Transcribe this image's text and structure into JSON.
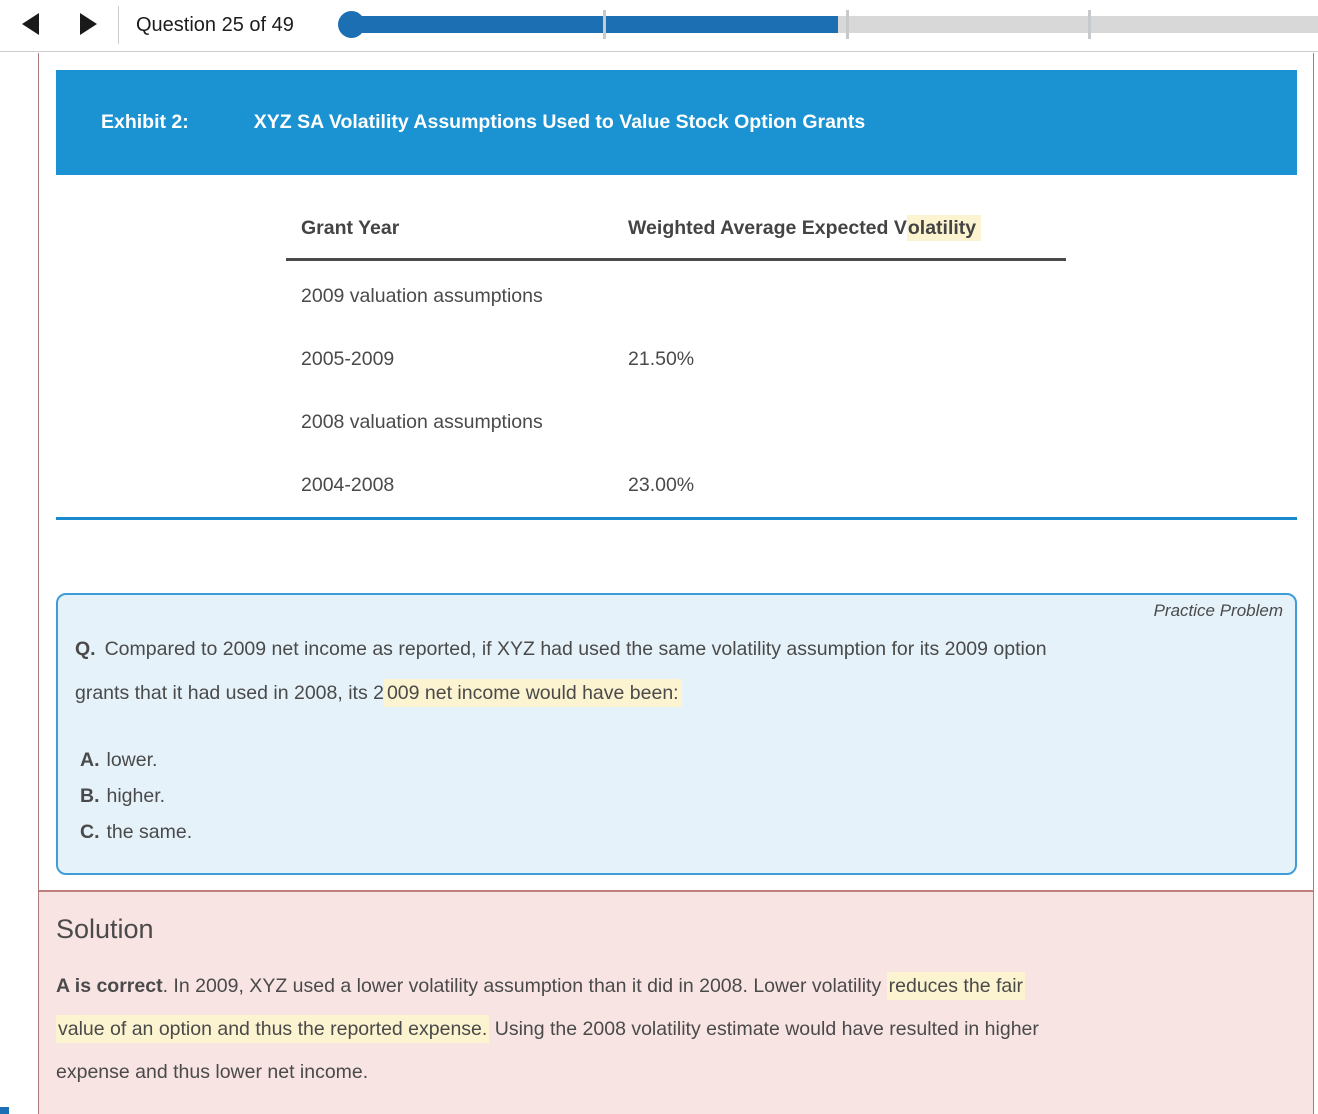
{
  "topbar": {
    "question_counter": "Question 25 of 49",
    "progress_percent": 50.7
  },
  "exhibit": {
    "label": "Exhibit 2:",
    "title": "XYZ SA Volatility Assumptions Used to Value Stock Option Grants"
  },
  "table": {
    "col1_label": "Grant Year",
    "col2_pre": "Weighted Average Expected V",
    "col2_mark": "olatility",
    "rows": [
      {
        "grant_year": "2009 valuation assumptions",
        "volatility": ""
      },
      {
        "grant_year": "2005-2009",
        "volatility": "21.50%"
      },
      {
        "grant_year": "2008 valuation assumptions",
        "volatility": ""
      },
      {
        "grant_year": "2004-2008",
        "volatility": "23.00%"
      }
    ]
  },
  "question": {
    "badge": "Practice Problem",
    "q_label": "Q.",
    "line1": "Compared to 2009 net income as reported, if XYZ had used the same volatility assumption for its 2009 option",
    "line2_pre": "grants that it had used in 2008, its 2",
    "line2_mark": "009 net income would have been:",
    "options": [
      {
        "letter": "A.",
        "text": "lower."
      },
      {
        "letter": "B.",
        "text": "higher."
      },
      {
        "letter": "C.",
        "text": "the same."
      }
    ]
  },
  "solution": {
    "heading": "Solution",
    "line1_bold": "A is correct",
    "line1_text": ". In 2009, XYZ used a lower volatility assumption than it did in 2008. Lower volatility ",
    "line1_mark": "reduces the fair",
    "line2_mark": "value of an option and thus the reported expense.",
    "line2_text": " Using the 2008 volatility estimate would have resulted in higher",
    "line3_text": "expense and thus lower net income."
  },
  "colors": {
    "accent_blue": "#1d6fb3",
    "header_blue": "#1b92d1",
    "rule_blue": "#1a8ace",
    "box_blue_border": "#3f9cd9",
    "box_blue_bg": "#e5f2fa",
    "highlight_yellow": "#fcf3d0",
    "solution_bg": "#f9e4e4",
    "solution_border": "#c0807e",
    "panel_border": "#ab7a7a"
  }
}
